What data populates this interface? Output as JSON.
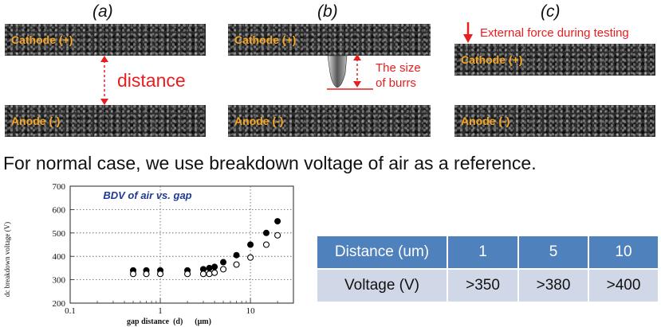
{
  "panels": [
    {
      "label": "(a)",
      "cathode": "Cathode (+)",
      "anode": "Anode (-)",
      "annotation": "distance"
    },
    {
      "label": "(b)",
      "cathode": "Cathode (+)",
      "anode": "Anode (-)",
      "annotation_line1": "The size",
      "annotation_line2": "of burrs"
    },
    {
      "label": "(c)",
      "cathode": "Cathode (+)",
      "anode": "Anode (-)",
      "annotation": "External force during testing"
    }
  ],
  "sentence": "For normal case, we use breakdown voltage of air as a reference.",
  "chart_data": {
    "type": "scatter",
    "title": "BDV of air vs. gap",
    "xlabel": "gap distance  (d)      (μm)",
    "ylabel": "dc breakdown voltage (V)",
    "x_scale": "log",
    "xlim": [
      0.1,
      30
    ],
    "ylim": [
      200,
      700
    ],
    "x_ticks": [
      "0.1",
      "1",
      "10"
    ],
    "y_ticks": [
      "200",
      "300",
      "400",
      "500",
      "600",
      "700"
    ],
    "series": [
      {
        "marker": "filled",
        "x": [
          0.5,
          0.7,
          1,
          2,
          3,
          3.5,
          4,
          5,
          7,
          10,
          15,
          20
        ],
        "y": [
          340,
          340,
          340,
          340,
          345,
          350,
          355,
          375,
          405,
          450,
          500,
          550
        ]
      },
      {
        "marker": "open",
        "x": [
          0.5,
          0.7,
          1,
          2,
          3,
          3.5,
          4,
          5,
          7,
          10,
          15,
          20
        ],
        "y": [
          325,
          325,
          325,
          325,
          325,
          325,
          330,
          345,
          365,
          395,
          450,
          490
        ]
      }
    ]
  },
  "table": {
    "header": [
      "Distance (um)",
      "1",
      "5",
      "10"
    ],
    "row": [
      "Voltage (V)",
      ">350",
      ">380",
      ">400"
    ]
  },
  "colors": {
    "annotation_red": "#e81e1e",
    "electrode_text": "#f5a623",
    "table_header": "#4f81bd",
    "table_row": "#d0d8e8"
  }
}
